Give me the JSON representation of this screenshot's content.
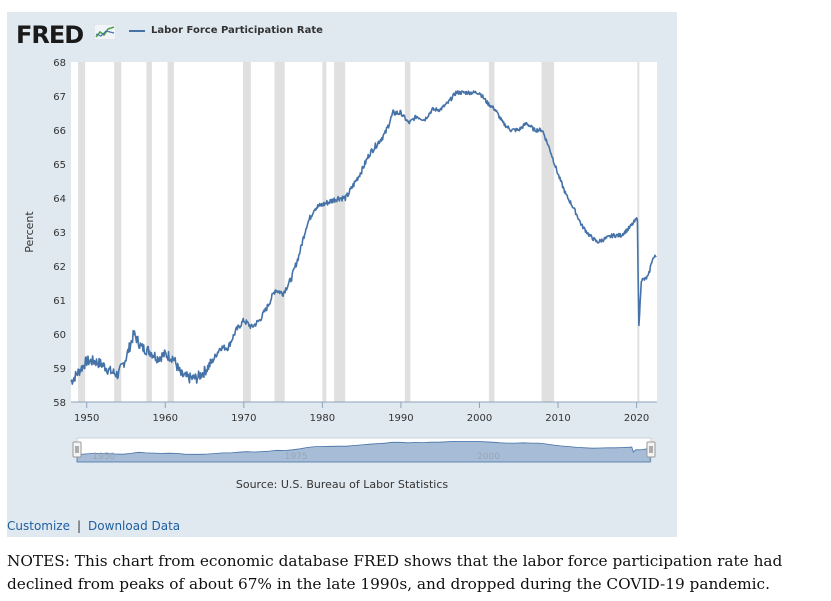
{
  "header": {
    "logo_text": "FRED",
    "logo_icon": "line-chart-icon"
  },
  "colors": {
    "panel_bg": "#e1e9f0",
    "plot_bg": "#ffffff",
    "series": "#4572a7",
    "recession": "#e0e0e0",
    "navigator_fill": "#a7bcd6",
    "link": "#1f5fa0"
  },
  "chart_data": {
    "type": "line",
    "title": "",
    "xlabel": "",
    "ylabel": "Percent",
    "xlim": [
      1948,
      2022.6
    ],
    "ylim": [
      58,
      68
    ],
    "yticks": [
      58,
      59,
      60,
      61,
      62,
      63,
      64,
      65,
      66,
      67,
      68
    ],
    "xticks": [
      1950,
      1960,
      1970,
      1980,
      1990,
      2000,
      2010,
      2020
    ],
    "grid": false,
    "legend": "top-left",
    "recession_shading": [
      [
        1948.9,
        1949.8
      ],
      [
        1953.5,
        1954.4
      ],
      [
        1957.6,
        1958.3
      ],
      [
        1960.3,
        1961.1
      ],
      [
        1969.9,
        1970.9
      ],
      [
        1973.9,
        1975.2
      ],
      [
        1980.0,
        1980.5
      ],
      [
        1981.5,
        1982.9
      ],
      [
        1990.5,
        1991.2
      ],
      [
        2001.2,
        2001.9
      ],
      [
        2007.9,
        2009.5
      ],
      [
        2020.1,
        2020.3
      ]
    ],
    "series": [
      {
        "name": "Labor Force Participation Rate",
        "points": [
          [
            1948,
            58.6
          ],
          [
            1949,
            58.9
          ],
          [
            1950,
            59.2
          ],
          [
            1951,
            59.2
          ],
          [
            1952,
            59.1
          ],
          [
            1953,
            58.9
          ],
          [
            1954,
            58.8
          ],
          [
            1955,
            59.3
          ],
          [
            1956,
            60.0
          ],
          [
            1957,
            59.6
          ],
          [
            1958,
            59.5
          ],
          [
            1959,
            59.3
          ],
          [
            1960,
            59.4
          ],
          [
            1961,
            59.3
          ],
          [
            1962,
            58.8
          ],
          [
            1963,
            58.7
          ],
          [
            1964,
            58.7
          ],
          [
            1965,
            58.9
          ],
          [
            1966,
            59.2
          ],
          [
            1967,
            59.6
          ],
          [
            1968,
            59.6
          ],
          [
            1969,
            60.1
          ],
          [
            1970,
            60.4
          ],
          [
            1971,
            60.2
          ],
          [
            1972,
            60.4
          ],
          [
            1973,
            60.8
          ],
          [
            1974,
            61.3
          ],
          [
            1975,
            61.2
          ],
          [
            1976,
            61.6
          ],
          [
            1977,
            62.3
          ],
          [
            1978,
            63.2
          ],
          [
            1979,
            63.7
          ],
          [
            1980,
            63.8
          ],
          [
            1981,
            63.9
          ],
          [
            1982,
            64.0
          ],
          [
            1983,
            64.0
          ],
          [
            1984,
            64.4
          ],
          [
            1985,
            64.8
          ],
          [
            1986,
            65.3
          ],
          [
            1987,
            65.6
          ],
          [
            1988,
            65.9
          ],
          [
            1989,
            66.5
          ],
          [
            1990,
            66.5
          ],
          [
            1991,
            66.2
          ],
          [
            1992,
            66.4
          ],
          [
            1993,
            66.3
          ],
          [
            1994,
            66.6
          ],
          [
            1995,
            66.6
          ],
          [
            1996,
            66.8
          ],
          [
            1997,
            67.1
          ],
          [
            1998,
            67.1
          ],
          [
            1999,
            67.1
          ],
          [
            2000,
            67.1
          ],
          [
            2001,
            66.8
          ],
          [
            2002,
            66.6
          ],
          [
            2003,
            66.2
          ],
          [
            2004,
            66.0
          ],
          [
            2005,
            66.0
          ],
          [
            2006,
            66.2
          ],
          [
            2007,
            66.0
          ],
          [
            2008,
            66.0
          ],
          [
            2009,
            65.4
          ],
          [
            2010,
            64.7
          ],
          [
            2011,
            64.1
          ],
          [
            2012,
            63.7
          ],
          [
            2013,
            63.2
          ],
          [
            2014,
            62.9
          ],
          [
            2015,
            62.7
          ],
          [
            2016,
            62.8
          ],
          [
            2017,
            62.9
          ],
          [
            2018,
            62.9
          ],
          [
            2019,
            63.1
          ],
          [
            2020.1,
            63.4
          ],
          [
            2020.3,
            60.2
          ],
          [
            2020.6,
            61.6
          ],
          [
            2021,
            61.6
          ],
          [
            2021.5,
            61.7
          ],
          [
            2022,
            62.2
          ],
          [
            2022.5,
            62.3
          ]
        ]
      }
    ],
    "navigator": {
      "tick_labels": [
        "1950",
        "1975",
        "2000"
      ]
    }
  },
  "source_text": "Source: U.S. Bureau of Labor Statistics",
  "links": {
    "customize": "Customize",
    "separator": "|",
    "download": "Download Data"
  },
  "notes": "NOTES: This chart from economic database FRED shows that the labor force participation rate had declined from peaks of about 67% in the late 1990s, and dropped during the COVID-19 pandemic."
}
